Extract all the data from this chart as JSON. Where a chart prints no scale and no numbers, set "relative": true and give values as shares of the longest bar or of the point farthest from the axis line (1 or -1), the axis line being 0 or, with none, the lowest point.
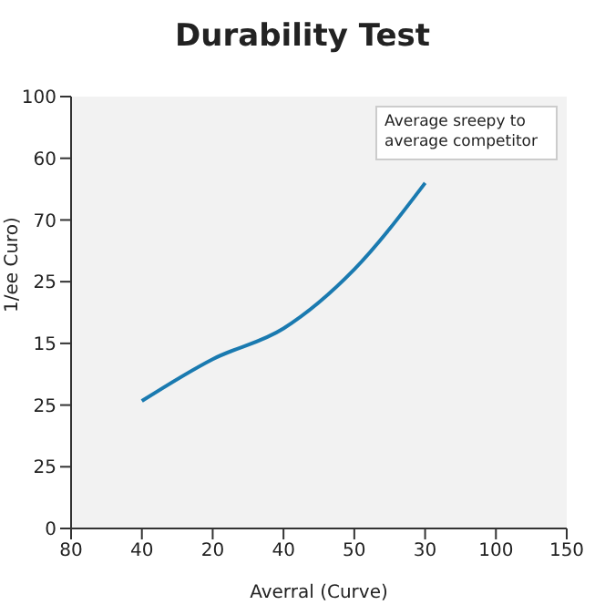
{
  "chart_data": {
    "type": "line",
    "title": "Durability Test",
    "xlabel": "Averral (Curve)",
    "ylabel": "1/ee Curo)",
    "relative": true,
    "annotations": [
      "Average sreepy to average competitor",
      "0",
      "25",
      "25",
      "15",
      "25",
      "70",
      "60",
      "100"
    ],
    "categories": [
      "80",
      "40",
      "20",
      "40",
      "50",
      "30",
      "100",
      "150"
    ],
    "series": [
      {
        "color": "#1a7ab0",
        "values": [
          null,
          0.369,
          0.49,
          0.579,
          0.75,
          1,
          null,
          null
        ]
      }
    ],
    "grid": false,
    "legend": false,
    "marker": "none",
    "line_style": "solid"
  }
}
